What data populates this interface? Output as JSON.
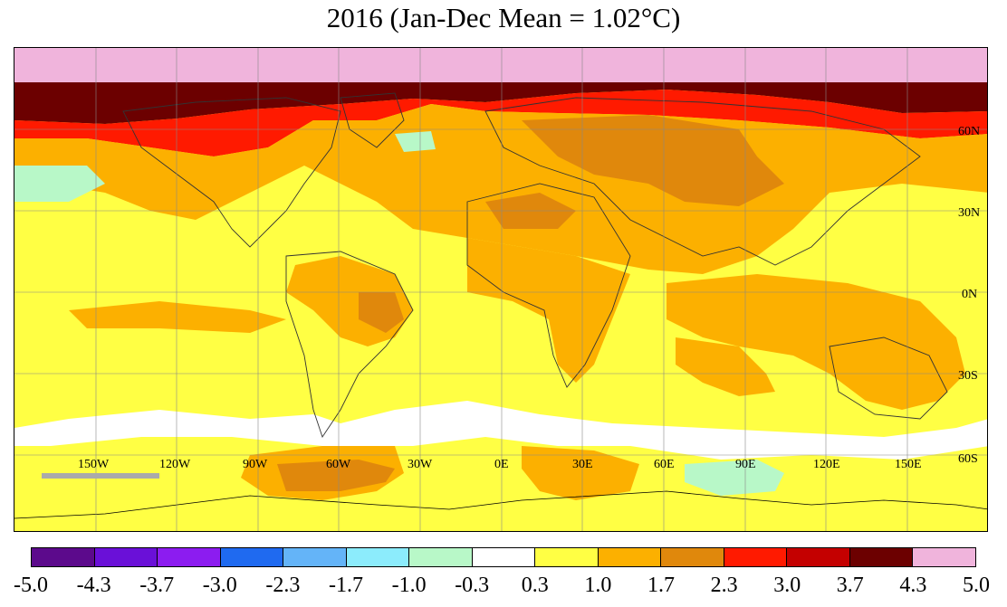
{
  "title": "2016 (Jan-Dec Mean = 1.02°C)",
  "map": {
    "lat_labels": [
      "60N",
      "30N",
      "0N",
      "30S",
      "60S"
    ],
    "lon_labels": [
      "150W",
      "120W",
      "90W",
      "60W",
      "30W",
      "0E",
      "30E",
      "60E",
      "90E",
      "120E",
      "150E"
    ]
  },
  "legend": {
    "ticks": [
      "-5.0",
      "-4.3",
      "-3.7",
      "-3.0",
      "-2.3",
      "-1.7",
      "-1.0",
      "-0.3",
      "0.3",
      "1.0",
      "1.7",
      "2.3",
      "3.0",
      "3.7",
      "4.3",
      "5.0"
    ],
    "colors": [
      "#5c0a8c",
      "#6a10d8",
      "#8c1cf0",
      "#1f6af0",
      "#64b4f8",
      "#8cecfc",
      "#b8f8c8",
      "#ffffff",
      "#ffff44",
      "#fcb000",
      "#e0880c",
      "#ff1a00",
      "#c40000",
      "#6c0000",
      "#f0b4dc"
    ]
  }
}
